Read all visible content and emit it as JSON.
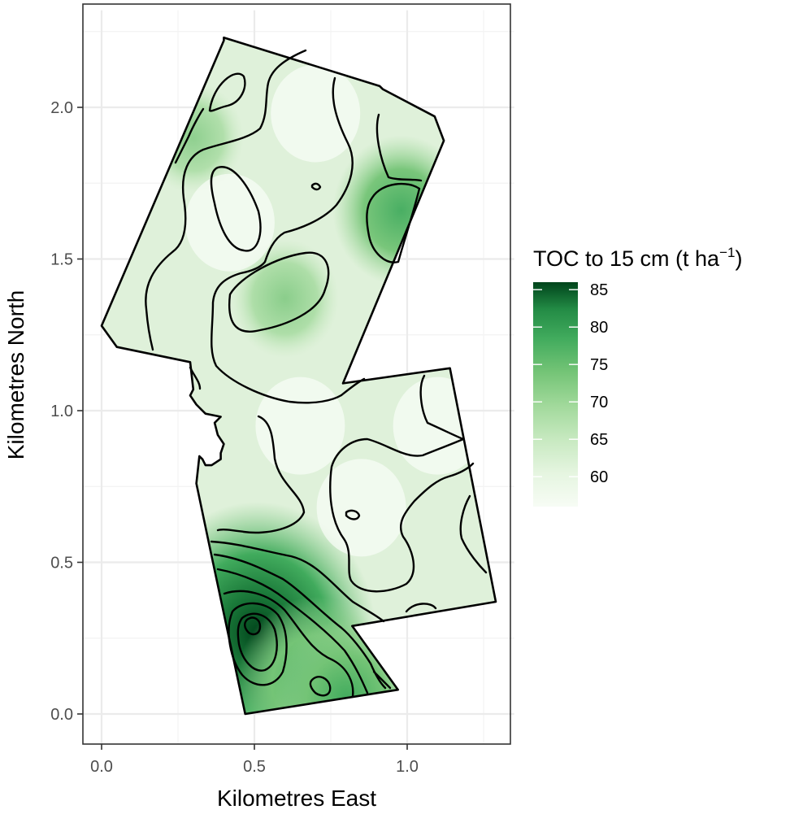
{
  "chart_data": {
    "type": "heatmap",
    "xlabel": "Kilometres East",
    "ylabel": "Kilometres North",
    "xlim": [
      -0.06,
      1.35
    ],
    "ylim": [
      -0.1,
      2.32
    ],
    "x_ticks": [
      0.0,
      0.5,
      1.0
    ],
    "x_tick_labels": [
      "0.0",
      "0.5",
      "1.0"
    ],
    "y_ticks": [
      0.0,
      0.5,
      1.0,
      1.5,
      2.0
    ],
    "y_tick_labels": [
      "0.0",
      "0.5",
      "1.0",
      "1.5",
      "2.0"
    ],
    "grid": true,
    "legend": {
      "title_main": "TOC to 15 cm (t ha",
      "title_sup": "−1",
      "title_end": ")",
      "placement": "right",
      "range": [
        56,
        86
      ],
      "colors": {
        "low": "#f7fcf5",
        "high": "#00441b"
      },
      "ticks": [
        60,
        65,
        70,
        75,
        80,
        85
      ],
      "tick_labels": [
        "60",
        "65",
        "70",
        "75",
        "80",
        "85"
      ]
    },
    "boundary_km": [
      [
        0.47,
        0.0
      ],
      [
        0.97,
        0.08
      ],
      [
        0.82,
        0.29
      ],
      [
        1.29,
        0.37
      ],
      [
        1.14,
        1.14
      ],
      [
        0.79,
        1.09
      ],
      [
        1.12,
        1.89
      ],
      [
        1.09,
        1.97
      ],
      [
        0.92,
        2.06
      ],
      [
        0.91,
        2.07
      ],
      [
        0.4,
        2.23
      ],
      [
        0.4,
        2.22
      ],
      [
        0.0,
        1.28
      ],
      [
        0.05,
        1.21
      ],
      [
        0.29,
        1.16
      ],
      [
        0.3,
        1.07
      ],
      [
        0.29,
        1.05
      ],
      [
        0.31,
        1.02
      ],
      [
        0.34,
        0.99
      ],
      [
        0.39,
        0.98
      ],
      [
        0.37,
        0.96
      ],
      [
        0.38,
        0.92
      ],
      [
        0.4,
        0.89
      ],
      [
        0.39,
        0.86
      ],
      [
        0.39,
        0.84
      ],
      [
        0.36,
        0.82
      ],
      [
        0.34,
        0.82
      ],
      [
        0.33,
        0.84
      ],
      [
        0.32,
        0.85
      ],
      [
        0.31,
        0.76
      ],
      [
        0.36,
        0.52
      ]
    ],
    "toc_hotspots": [
      {
        "x": 0.51,
        "y": 0.27,
        "value": 85
      },
      {
        "x": 0.7,
        "y": 0.1,
        "value": 74
      },
      {
        "x": 0.98,
        "y": 1.66,
        "value": 71
      },
      {
        "x": 0.6,
        "y": 1.37,
        "value": 67
      },
      {
        "x": 0.3,
        "y": 1.9,
        "value": 66
      },
      {
        "x": 0.8,
        "y": 0.05,
        "value": 72
      }
    ],
    "toc_background": 61
  }
}
